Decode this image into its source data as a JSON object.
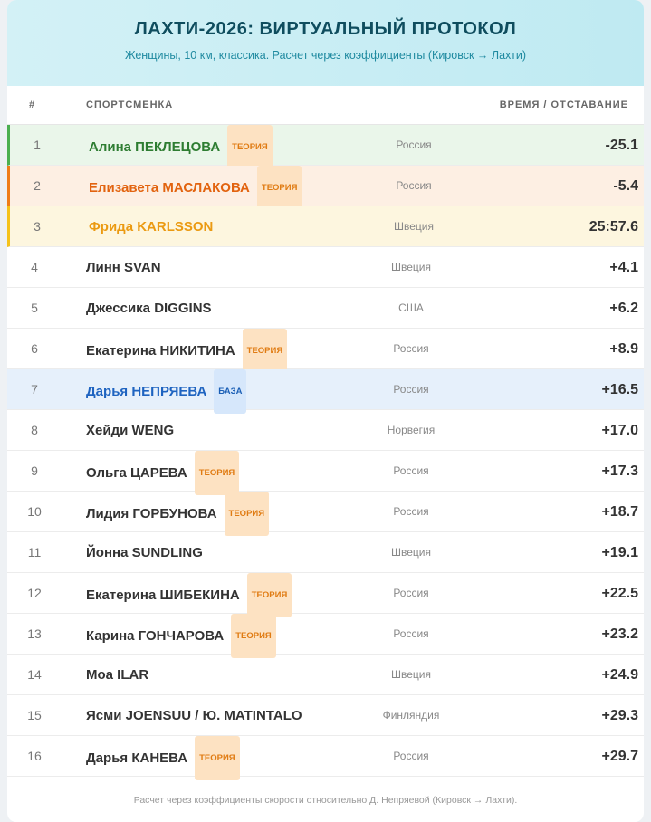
{
  "header": {
    "title": "ЛАХТИ-2026: ВИРТУАЛЬНЫЙ ПРОТОКОЛ",
    "subtitle": "Женщины, 10 км, классика. Расчет через коэффициенты (Кировск → Лахти)"
  },
  "table": {
    "columns": [
      "#",
      "СПОРТСМЕНКА",
      "ВРЕМЯ / ОТСТАВАНИЕ"
    ],
    "rows": [
      {
        "rank": 1,
        "name": "Алина ПЕКЛЕЦОВА",
        "tag": "ТЕОРИЯ",
        "country": "Россия",
        "time": "-25.1"
      },
      {
        "rank": 2,
        "name": "Елизавета МАСЛАКОВА",
        "tag": "ТЕОРИЯ",
        "country": "Россия",
        "time": "-5.4"
      },
      {
        "rank": 3,
        "name": "Фрида KARLSSON",
        "country": "Швеция",
        "time": "25:57.6"
      },
      {
        "rank": 4,
        "name": "Линн SVAN",
        "country": "Швеция",
        "time": "+4.1"
      },
      {
        "rank": 5,
        "name": "Джессика DIGGINS",
        "country": "США",
        "time": "+6.2"
      },
      {
        "rank": 6,
        "name": "Екатерина НИКИТИНА",
        "tag": "ТЕОРИЯ",
        "country": "Россия",
        "time": "+8.9"
      },
      {
        "rank": 7,
        "name": "Дарья НЕПРЯЕВА",
        "tag": "БАЗА",
        "country": "Россия",
        "time": "+16.5"
      },
      {
        "rank": 8,
        "name": "Хейди WENG",
        "country": "Норвегия",
        "time": "+17.0"
      },
      {
        "rank": 9,
        "name": "Ольга ЦАРЕВА",
        "tag": "ТЕОРИЯ",
        "country": "Россия",
        "time": "+17.3"
      },
      {
        "rank": 10,
        "name": "Лидия ГОРБУНОВА",
        "tag": "ТЕОРИЯ",
        "country": "Россия",
        "time": "+18.7"
      },
      {
        "rank": 11,
        "name": "Йонна SUNDLING",
        "country": "Швеция",
        "time": "+19.1"
      },
      {
        "rank": 12,
        "name": "Екатерина ШИБЕКИНА",
        "tag": "ТЕОРИЯ",
        "country": "Россия",
        "time": "+22.5"
      },
      {
        "rank": 13,
        "name": "Карина ГОНЧАРОВА",
        "tag": "ТЕОРИЯ",
        "country": "Россия",
        "time": "+23.2"
      },
      {
        "rank": 14,
        "name": "Моа ILAR",
        "country": "Швеция",
        "time": "+24.9"
      },
      {
        "rank": 15,
        "name": "Ясми JOENSUU / Ю. MATINTALO",
        "country": "Финляндия",
        "time": "+29.3"
      },
      {
        "rank": 16,
        "name": "Дарья КАНЕВА",
        "tag": "ТЕОРИЯ",
        "country": "Россия",
        "time": "+29.7"
      }
    ]
  },
  "footer": "Расчет через коэффициенты скорости относительно Д. Непряевой (Кировск → Лахти)."
}
